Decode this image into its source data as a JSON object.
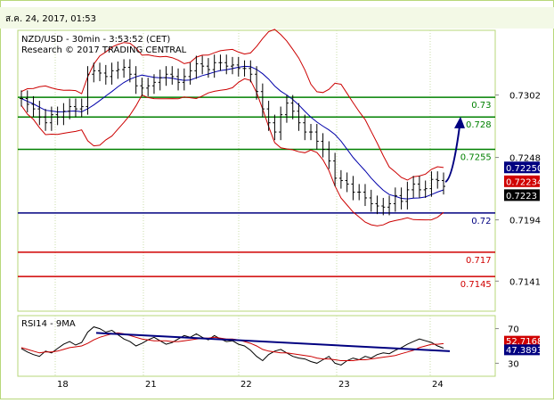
{
  "header": {
    "timestamp": "ส.ค. 24, 2017, 01:53"
  },
  "price_panel": {
    "title_line1": "NZD/USD - 30min - 3:53:52 (CET)",
    "title_line2": "Research © 2017 TRADING CENTRAL"
  },
  "rsi_panel": {
    "title": "RSI14 - 9MA"
  },
  "colors": {
    "border_green": "#b7d77a",
    "resistance": "#008000",
    "support_blue": "#000080",
    "support_red": "#d00000",
    "bollinger": "#cc0000",
    "moving_average": "#0000aa",
    "candle": "#000000",
    "forecast_arrow": "#000080",
    "rsi_ma": "#cc0000",
    "rsi_trend": "#000080"
  },
  "chart_data": [
    {
      "type": "candlestick",
      "title": "NZD/USD - 30min - 3:53:52 (CET)",
      "subtitle": "Research © 2017 TRADING CENTRAL",
      "x_ticks": [
        "18",
        "21",
        "22",
        "23",
        "24"
      ],
      "y_ticks": [
        "0.7302",
        "0.7248",
        "0.7194",
        "0.7141"
      ],
      "ylim": [
        0.7115,
        0.7358
      ],
      "levels": [
        {
          "label": "0.73",
          "value": 0.73,
          "color": "#008000"
        },
        {
          "label": "0.728",
          "value": 0.7283,
          "color": "#008000"
        },
        {
          "label": "0.7255",
          "value": 0.7255,
          "color": "#008000"
        },
        {
          "label": "0.72",
          "value": 0.72,
          "color": "#000080"
        },
        {
          "label": "0.717",
          "value": 0.7166,
          "color": "#d00000"
        },
        {
          "label": "0.7145",
          "value": 0.7145,
          "color": "#d00000"
        }
      ],
      "price_tags": [
        {
          "label": "0.72250",
          "value": 0.7239,
          "bg": "#000080"
        },
        {
          "label": "0.72234",
          "value": 0.7227,
          "bg": "#d00000"
        },
        {
          "label": "0.7223",
          "value": 0.7215,
          "bg": "#000000"
        }
      ],
      "close": [
        0.7299,
        0.7294,
        0.729,
        0.7283,
        0.7278,
        0.7285,
        0.7283,
        0.7288,
        0.7292,
        0.729,
        0.7292,
        0.732,
        0.7323,
        0.7321,
        0.7318,
        0.7323,
        0.7324,
        0.7326,
        0.732,
        0.731,
        0.7308,
        0.731,
        0.7313,
        0.7317,
        0.732,
        0.7318,
        0.7313,
        0.7318,
        0.7323,
        0.7329,
        0.7327,
        0.7324,
        0.733,
        0.733,
        0.7327,
        0.7328,
        0.7325,
        0.7325,
        0.732,
        0.7305,
        0.729,
        0.7278,
        0.727,
        0.7285,
        0.7295,
        0.7288,
        0.7278,
        0.727,
        0.727,
        0.7262,
        0.7255,
        0.7245,
        0.723,
        0.7228,
        0.7225,
        0.7218,
        0.7218,
        0.7213,
        0.7208,
        0.7206,
        0.7205,
        0.7208,
        0.7215,
        0.721,
        0.722,
        0.7225,
        0.722,
        0.7221,
        0.7229,
        0.7228,
        0.7223
      ],
      "forecast": {
        "from": 0.7223,
        "to": 0.7281
      }
    },
    {
      "type": "line",
      "title": "RSI14 - 9MA",
      "y_ticks": [
        "70",
        "30"
      ],
      "ylim": [
        15,
        85
      ],
      "series": [
        {
          "values": [
            47,
            43,
            40,
            38,
            44,
            42,
            47,
            52,
            55,
            51,
            54,
            66,
            72,
            70,
            66,
            68,
            63,
            58,
            55,
            50,
            53,
            57,
            60,
            56,
            52,
            54,
            58,
            62,
            60,
            64,
            60,
            57,
            62,
            58,
            55,
            56,
            52,
            50,
            45,
            38,
            33,
            40,
            44,
            46,
            42,
            38,
            36,
            35,
            32,
            30,
            34,
            38,
            30,
            28,
            33,
            36,
            34,
            38,
            36,
            40,
            42,
            41,
            45,
            48,
            52,
            55,
            58,
            56,
            54,
            50,
            47.39
          ],
          "color": "#000000"
        },
        {
          "values": [
            48,
            46,
            44,
            42,
            43,
            43,
            44,
            46,
            48,
            49,
            50,
            53,
            57,
            60,
            62,
            64,
            65,
            64,
            62,
            60,
            58,
            57,
            56,
            56,
            56,
            55,
            55,
            56,
            57,
            58,
            59,
            59,
            60,
            59,
            58,
            58,
            57,
            55,
            53,
            50,
            46,
            44,
            43,
            42,
            42,
            41,
            40,
            39,
            38,
            36,
            35,
            35,
            34,
            33,
            33,
            33,
            34,
            34,
            35,
            36,
            37,
            38,
            39,
            41,
            43,
            45,
            48,
            50,
            52,
            52,
            52.72
          ],
          "color": "#cc0000"
        }
      ],
      "trendline": {
        "from": 65,
        "to": 44
      },
      "value_tags": [
        {
          "label": "52.7168",
          "value": 55.5,
          "bg": "#d00000"
        },
        {
          "label": "47.3893",
          "value": 45.5,
          "bg": "#000080"
        }
      ]
    }
  ]
}
